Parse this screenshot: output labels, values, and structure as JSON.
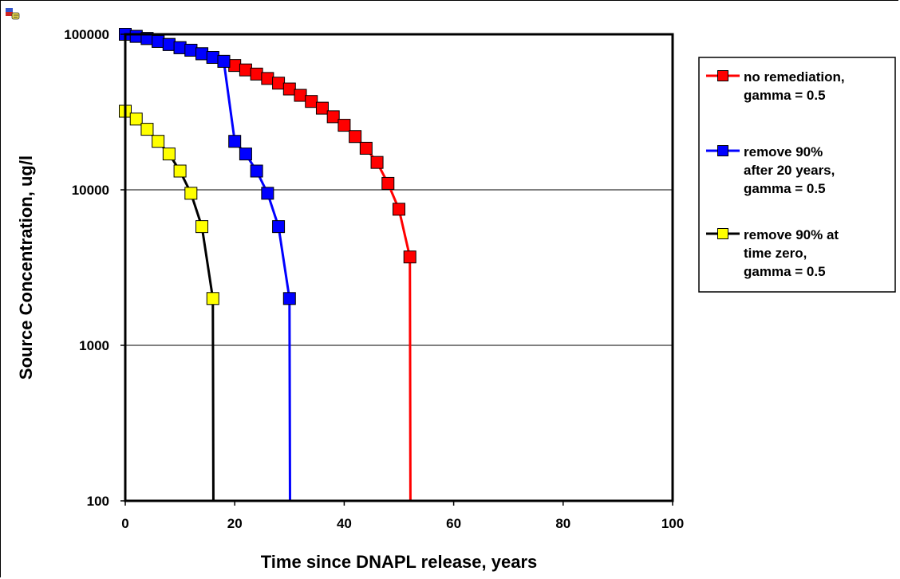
{
  "chart_data": {
    "type": "line",
    "title": "",
    "xlabel": "Time since DNAPL release, years",
    "ylabel": "Source Concentration, ug/l",
    "xlim": [
      0,
      100
    ],
    "ylim": [
      100,
      100000
    ],
    "yscale": "log",
    "xticks": [
      "0",
      "20",
      "40",
      "60",
      "80",
      "100"
    ],
    "yticks": [
      "100",
      "1000",
      "10000",
      "100000"
    ],
    "grid": "horizontal major",
    "legend_position": "right",
    "series": [
      {
        "name": "no remediation, gamma = 0.5",
        "line_color": "#ff0000",
        "marker_color": "#ff0000",
        "x": [
          0,
          2,
          4,
          6,
          8,
          10,
          12,
          14,
          16,
          18,
          20,
          22,
          24,
          26,
          28,
          30,
          32,
          34,
          36,
          38,
          40,
          42,
          44,
          46,
          48,
          50,
          52,
          52.1
        ],
        "y": [
          100000,
          97000,
          94000,
          90000,
          86000,
          82000,
          79000,
          75000,
          71000,
          67000,
          63000,
          59000,
          55500,
          52000,
          48500,
          44500,
          40500,
          37000,
          33500,
          29500,
          26000,
          22000,
          18500,
          15000,
          11000,
          7500,
          3700,
          100
        ],
        "markers": [
          true,
          true,
          true,
          true,
          true,
          true,
          true,
          true,
          true,
          true,
          true,
          true,
          true,
          true,
          true,
          true,
          true,
          true,
          true,
          true,
          true,
          true,
          true,
          true,
          true,
          true,
          true,
          false
        ]
      },
      {
        "name": "remove 90% after 20 years, gamma = 0.5",
        "line_color": "#0000ff",
        "marker_color": "#0000ff",
        "x": [
          0,
          2,
          4,
          6,
          8,
          10,
          12,
          14,
          16,
          18,
          20,
          22,
          24,
          26,
          28,
          30,
          30.1
        ],
        "y": [
          100000,
          97000,
          94000,
          90000,
          86000,
          82000,
          79000,
          75000,
          71000,
          67000,
          20500,
          17000,
          13200,
          9500,
          5800,
          2000,
          100
        ],
        "markers": [
          true,
          true,
          true,
          true,
          true,
          true,
          true,
          true,
          true,
          true,
          true,
          true,
          true,
          true,
          true,
          true,
          false
        ]
      },
      {
        "name": "remove 90% at time zero, gamma = 0.5",
        "line_color": "#000000",
        "marker_color": "#ffff00",
        "x": [
          0,
          0,
          2,
          4,
          6,
          8,
          10,
          12,
          14,
          16,
          16.1
        ],
        "y": [
          100000,
          32000,
          28500,
          24500,
          20500,
          17000,
          13200,
          9500,
          5800,
          2000,
          100
        ],
        "markers": [
          false,
          true,
          true,
          true,
          true,
          true,
          true,
          true,
          true,
          true,
          false
        ]
      }
    ],
    "legend": [
      {
        "lines": [
          "no remediation,",
          "gamma = 0.5"
        ]
      },
      {
        "lines": [
          "remove 90%",
          "after 20 years,",
          "gamma = 0.5"
        ]
      },
      {
        "lines": [
          "remove 90% at",
          "time zero,",
          "gamma = 0.5"
        ]
      }
    ]
  },
  "icons": {
    "corner": "chart-object-icon"
  }
}
